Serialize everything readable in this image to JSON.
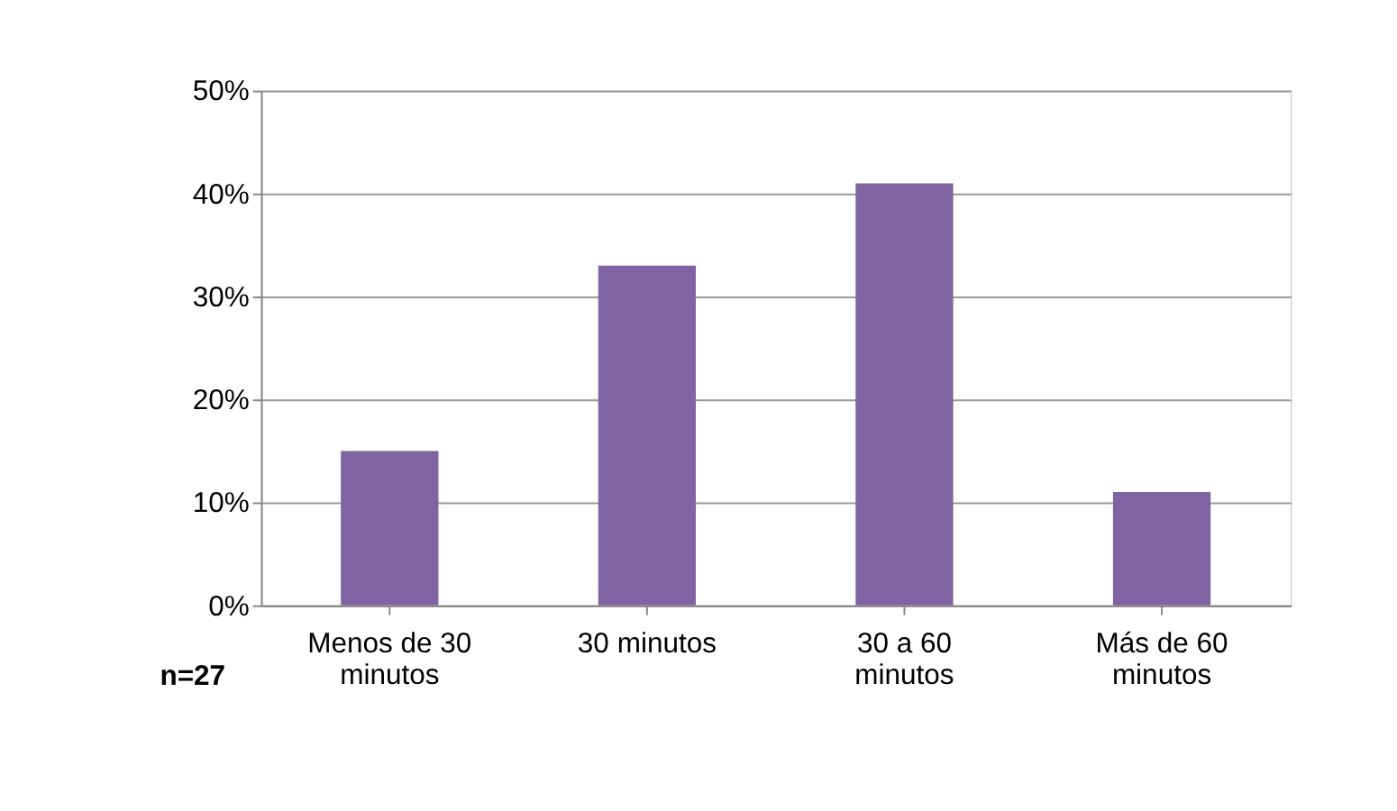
{
  "chart_data": {
    "type": "bar",
    "categories": [
      "Menos de 30 minutos",
      "30 minutos",
      "30 a 60 minutos",
      "Más de 60 minutos"
    ],
    "values": [
      15,
      33,
      41,
      11
    ],
    "color": "#8064a2",
    "ylim": [
      0,
      50
    ],
    "yticks": [
      {
        "value": 0,
        "label": "0%"
      },
      {
        "value": 10,
        "label": "10%"
      },
      {
        "value": 20,
        "label": "20%"
      },
      {
        "value": 30,
        "label": "30%"
      },
      {
        "value": 40,
        "label": "40%"
      },
      {
        "value": 50,
        "label": "50%"
      }
    ],
    "grid": "y",
    "annotations": [
      "n=27"
    ]
  }
}
